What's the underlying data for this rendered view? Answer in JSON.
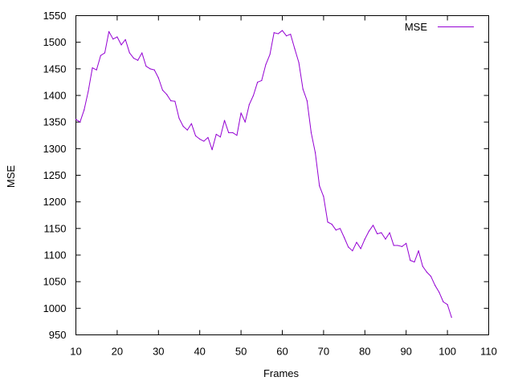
{
  "colors": {
    "series": "#9400d3",
    "axis": "#000000",
    "background": "#ffffff"
  },
  "chart_data": {
    "type": "line",
    "xlabel": "Frames",
    "ylabel": "MSE",
    "xlim": [
      10,
      110
    ],
    "ylim": [
      950,
      1550
    ],
    "xticks": [
      10,
      20,
      30,
      40,
      50,
      60,
      70,
      80,
      90,
      100,
      110
    ],
    "yticks": [
      950,
      1000,
      1050,
      1100,
      1150,
      1200,
      1250,
      1300,
      1350,
      1400,
      1450,
      1500,
      1550
    ],
    "grid": false,
    "legend_position": "top-right",
    "series": [
      {
        "name": "MSE",
        "x": [
          10,
          11,
          12,
          13,
          14,
          15,
          16,
          17,
          18,
          19,
          20,
          21,
          22,
          23,
          24,
          25,
          26,
          27,
          28,
          29,
          30,
          31,
          32,
          33,
          34,
          35,
          36,
          37,
          38,
          39,
          40,
          41,
          42,
          43,
          44,
          45,
          46,
          47,
          48,
          49,
          50,
          51,
          52,
          53,
          54,
          55,
          56,
          57,
          58,
          59,
          60,
          61,
          62,
          63,
          64,
          65,
          66,
          67,
          68,
          69,
          70,
          71,
          72,
          73,
          74,
          75,
          76,
          77,
          78,
          79,
          80,
          81,
          82,
          83,
          84,
          85,
          86,
          87,
          88,
          89,
          90,
          91,
          92,
          93,
          94,
          95,
          96,
          97,
          98,
          99,
          100,
          101
        ],
        "y": [
          1355,
          1350,
          1373,
          1408,
          1452,
          1448,
          1475,
          1480,
          1520,
          1506,
          1510,
          1495,
          1505,
          1480,
          1470,
          1466,
          1480,
          1455,
          1450,
          1448,
          1433,
          1410,
          1402,
          1390,
          1389,
          1357,
          1342,
          1335,
          1347,
          1324,
          1318,
          1314,
          1321,
          1298,
          1327,
          1322,
          1353,
          1330,
          1330,
          1325,
          1367,
          1350,
          1383,
          1400,
          1425,
          1428,
          1458,
          1477,
          1518,
          1516,
          1522,
          1512,
          1515,
          1488,
          1462,
          1412,
          1390,
          1330,
          1292,
          1230,
          1210,
          1162,
          1158,
          1147,
          1150,
          1133,
          1115,
          1108,
          1124,
          1112,
          1130,
          1145,
          1156,
          1140,
          1142,
          1130,
          1142,
          1118,
          1118,
          1116,
          1122,
          1090,
          1087,
          1108,
          1079,
          1068,
          1060,
          1043,
          1030,
          1012,
          1007,
          983
        ]
      }
    ]
  }
}
